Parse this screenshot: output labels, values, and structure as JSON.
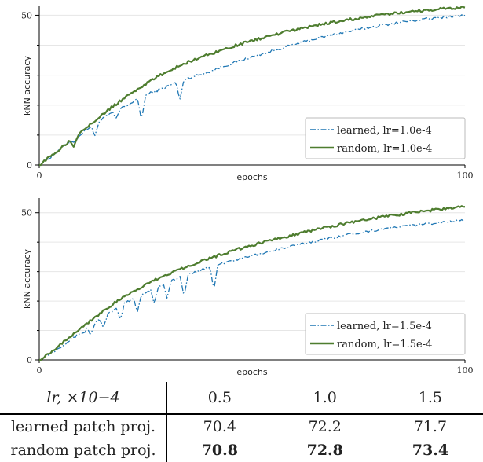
{
  "chart_data": [
    {
      "type": "line",
      "xlabel": "epochs",
      "ylabel": "kNN accuracy",
      "xlim": [
        0,
        100
      ],
      "ylim": [
        0,
        53
      ],
      "x_ticks": [
        "0",
        "100"
      ],
      "y_ticks": [
        "0",
        "50"
      ],
      "y_minor_ticks": [
        10,
        20,
        30,
        40
      ],
      "legend_position": "lower-right",
      "series": [
        {
          "name": "learned, lr=1.0e-4",
          "legend_label": "learned, lr=1.0e-4",
          "style": "dashdot",
          "color": "#1f77b4",
          "x": [
            0,
            3,
            6,
            9,
            12,
            14,
            16,
            18,
            20,
            22,
            24,
            26,
            28,
            30,
            32,
            34,
            36,
            38,
            40,
            42,
            45,
            48,
            51,
            55,
            60,
            65,
            70,
            75,
            80,
            85,
            90,
            95,
            100
          ],
          "y": [
            0,
            3,
            6.5,
            9.5,
            12.8,
            14.5,
            16.5,
            18.2,
            19.5,
            21,
            22.5,
            24,
            25,
            26.2,
            27.5,
            28.5,
            29.5,
            30.3,
            31.2,
            32.3,
            33.8,
            35.2,
            36.5,
            38.2,
            40.3,
            42.2,
            43.8,
            45.2,
            46.5,
            47.7,
            48.6,
            49.4,
            50
          ],
          "dips": [
            [
              8,
              7.5
            ],
            [
              13,
              9.5
            ],
            [
              18,
              15.5
            ],
            [
              24,
              14.8
            ],
            [
              33,
              21.5
            ]
          ]
        },
        {
          "name": "random, lr=1.0e-4",
          "legend_label": "random, lr=1.0e-4",
          "style": "solid",
          "color": "#4e7d2f",
          "x": [
            0,
            3,
            6,
            9,
            12,
            15,
            18,
            21,
            24,
            27,
            30,
            33,
            36,
            40,
            45,
            50,
            55,
            60,
            65,
            70,
            75,
            80,
            85,
            90,
            95,
            100
          ],
          "y": [
            0,
            3.2,
            6.8,
            10.2,
            13.8,
            17,
            20.3,
            23.4,
            26.2,
            28.8,
            31.2,
            33.2,
            35,
            37,
            39.4,
            41.5,
            43.4,
            45.1,
            46.6,
            47.9,
            49,
            50,
            50.9,
            51.6,
            52.2,
            52.6
          ],
          "dips": [
            [
              8,
              5.8
            ]
          ]
        }
      ]
    },
    {
      "type": "line",
      "xlabel": "epochs",
      "ylabel": "kNN accuracy",
      "xlim": [
        0,
        100
      ],
      "ylim": [
        0,
        55
      ],
      "x_ticks": [
        "0",
        "100"
      ],
      "y_ticks": [
        "0",
        "50"
      ],
      "y_minor_ticks": [
        10,
        20,
        30,
        40
      ],
      "legend_position": "lower-right",
      "series": [
        {
          "name": "learned, lr=1.5e-4",
          "legend_label": "learned, lr=1.5e-4",
          "style": "dashdot",
          "color": "#1f77b4",
          "x": [
            0,
            3,
            6,
            9,
            12,
            15,
            18,
            21,
            24,
            27,
            30,
            33,
            36,
            40,
            45,
            50,
            55,
            60,
            65,
            70,
            75,
            80,
            85,
            90,
            95,
            100
          ],
          "y": [
            0,
            2.5,
            5.5,
            8.5,
            11.5,
            14.5,
            17.3,
            20,
            22.3,
            24.3,
            26.2,
            28,
            29.6,
            31.5,
            33.6,
            35.4,
            37.2,
            38.8,
            40.4,
            41.9,
            43.2,
            44.3,
            45.3,
            46.1,
            46.8,
            47.5
          ],
          "dips": [
            [
              10,
              9
            ],
            [
              12,
              8.5
            ],
            [
              15,
              11
            ],
            [
              19,
              13.5
            ],
            [
              23,
              16
            ],
            [
              27,
              19
            ],
            [
              30,
              21
            ],
            [
              34,
              21.5
            ],
            [
              41,
              23.5
            ]
          ]
        },
        {
          "name": "random, lr=1.5e-4",
          "legend_label": "random, lr=1.5e-4",
          "style": "solid",
          "color": "#4e7d2f",
          "x": [
            0,
            3,
            6,
            9,
            12,
            15,
            18,
            21,
            24,
            27,
            30,
            33,
            36,
            40,
            45,
            50,
            55,
            60,
            65,
            70,
            75,
            80,
            85,
            90,
            95,
            100
          ],
          "y": [
            0,
            3,
            6.5,
            10,
            13.3,
            16.6,
            19.6,
            22.3,
            24.8,
            27,
            29,
            30.9,
            32.5,
            34.5,
            36.9,
            38.9,
            40.9,
            42.6,
            44.3,
            45.8,
            47.2,
            48.4,
            49.5,
            50.5,
            51.3,
            52
          ]
        }
      ]
    },
    {
      "type": "table",
      "header_label": "lr, ×10−4",
      "columns": [
        "0.5",
        "1.0",
        "1.5"
      ],
      "rows": [
        {
          "label": "learned patch proj.",
          "values": [
            "70.4",
            "72.2",
            "71.7"
          ],
          "bold": [
            false,
            false,
            false
          ]
        },
        {
          "label": "random patch proj.",
          "values": [
            "70.8",
            "72.8",
            "73.4"
          ],
          "bold": [
            true,
            true,
            true
          ]
        }
      ]
    }
  ]
}
